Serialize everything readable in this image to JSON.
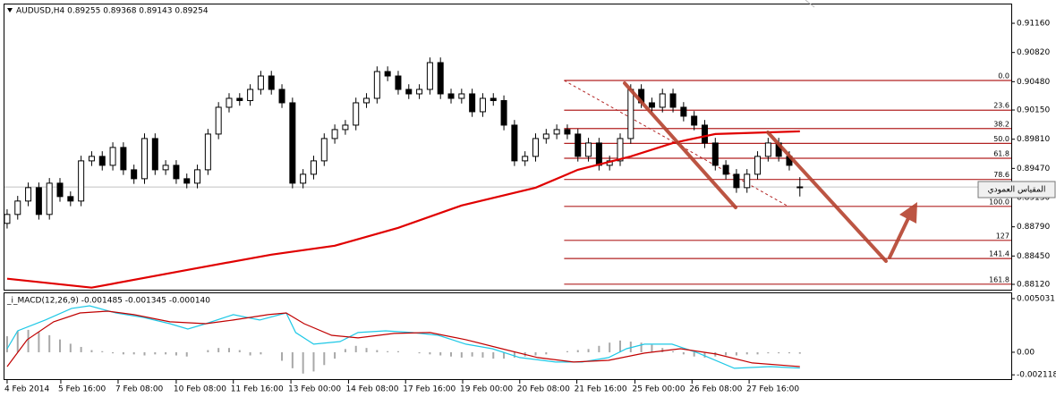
{
  "chart_data": [
    {
      "type": "candlestick",
      "title": "AUDUSD,H4  0.89255 0.89368 0.89143 0.89254",
      "up_color": "#ffffff",
      "down_color": "#000000",
      "edge_color": "#000000",
      "xlim": [
        -0.25,
        95
      ],
      "ylim": [
        0.88068,
        0.91379
      ],
      "yticks": [
        {
          "value": 0.9116,
          "label": "0.91160"
        },
        {
          "value": 0.9082,
          "label": "0.90820"
        },
        {
          "value": 0.9048,
          "label": "0.90480"
        },
        {
          "value": 0.9015,
          "label": "0.90150"
        },
        {
          "value": 0.8981,
          "label": "0.89810"
        },
        {
          "value": 0.8947,
          "label": "0.89470"
        },
        {
          "value": 0.8913,
          "label": "0.89130"
        },
        {
          "value": 0.8879,
          "label": "0.88790"
        },
        {
          "value": 0.8845,
          "label": "0.88450"
        },
        {
          "value": 0.8812,
          "label": "0.88120"
        }
      ],
      "xticks": [
        {
          "value": 0,
          "label": "4 Feb 2014"
        },
        {
          "value": 5.08,
          "label": "5 Feb 16:00"
        },
        {
          "value": 10.5,
          "label": "7 Feb 08:00"
        },
        {
          "value": 16,
          "label": "10 Feb 08:00"
        },
        {
          "value": 21.4,
          "label": "11 Feb 16:00"
        },
        {
          "value": 26.85,
          "label": "13 Feb 00:00"
        },
        {
          "value": 32.3,
          "label": "14 Feb 08:00"
        },
        {
          "value": 37.7,
          "label": "17 Feb 16:00"
        },
        {
          "value": 43.1,
          "label": "19 Feb 00:00"
        },
        {
          "value": 48.5,
          "label": "20 Feb 08:00"
        },
        {
          "value": 53.9,
          "label": "21 Feb 16:00"
        },
        {
          "value": 59.4,
          "label": "25 Feb 00:00"
        },
        {
          "value": 64.8,
          "label": "26 Feb 08:00"
        },
        {
          "value": 70.2,
          "label": "27 Feb 16:00"
        }
      ],
      "open": [
        0.8883,
        0.88934,
        0.8909,
        0.89246,
        0.88934,
        0.89298,
        0.89142,
        0.8909,
        0.89558,
        0.8961,
        0.89506,
        0.89714,
        0.89454,
        0.8935,
        0.89818,
        0.89454,
        0.89506,
        0.8935,
        0.89298,
        0.89454,
        0.8987,
        0.90182,
        0.90286,
        0.9026,
        0.9039,
        0.90546,
        0.9039,
        0.90234,
        0.89298,
        0.89402,
        0.89558,
        0.89818,
        0.89922,
        0.89974,
        0.90234,
        0.90286,
        0.90598,
        0.90546,
        0.9039,
        0.90338,
        0.9039,
        0.90702,
        0.90338,
        0.90286,
        0.90338,
        0.9013,
        0.90286,
        0.9026,
        0.89974,
        0.89558,
        0.8961,
        0.89818,
        0.8987,
        0.89922,
        0.8987,
        0.8961,
        0.89766,
        0.89506,
        0.89558,
        0.89818,
        0.9039,
        0.90234,
        0.90182,
        0.90338,
        0.90182,
        0.90078,
        0.89974,
        0.89766,
        0.89506,
        0.89402,
        0.89246,
        0.89402,
        0.8961,
        0.89766,
        0.8961,
        0.89255
      ],
      "high": [
        0.88994,
        0.8915,
        0.89306,
        0.89306,
        0.89358,
        0.89358,
        0.89202,
        0.89618,
        0.8967,
        0.8967,
        0.89774,
        0.89774,
        0.89514,
        0.89878,
        0.89878,
        0.89566,
        0.89566,
        0.8941,
        0.89514,
        0.8993,
        0.90242,
        0.90346,
        0.90346,
        0.9045,
        0.90606,
        0.90606,
        0.9045,
        0.90294,
        0.89462,
        0.89618,
        0.89878,
        0.89982,
        0.90034,
        0.90294,
        0.90346,
        0.90658,
        0.90658,
        0.90606,
        0.9045,
        0.9045,
        0.90762,
        0.90762,
        0.90398,
        0.90398,
        0.90398,
        0.90346,
        0.90346,
        0.9032,
        0.90034,
        0.8967,
        0.89878,
        0.8993,
        0.89982,
        0.89982,
        0.8993,
        0.89826,
        0.89826,
        0.89618,
        0.89878,
        0.9045,
        0.9045,
        0.90294,
        0.90398,
        0.90398,
        0.90242,
        0.90138,
        0.90034,
        0.89826,
        0.89566,
        0.89462,
        0.89462,
        0.8967,
        0.89826,
        0.89826,
        0.8967,
        0.89368
      ],
      "low": [
        0.8877,
        0.88874,
        0.8903,
        0.88874,
        0.88874,
        0.89082,
        0.8903,
        0.8903,
        0.89498,
        0.89446,
        0.89446,
        0.89394,
        0.8929,
        0.8929,
        0.89394,
        0.89394,
        0.8929,
        0.89238,
        0.89238,
        0.89394,
        0.8981,
        0.90122,
        0.902,
        0.902,
        0.9033,
        0.9033,
        0.90174,
        0.89238,
        0.89238,
        0.89342,
        0.89498,
        0.89758,
        0.89862,
        0.89914,
        0.90174,
        0.90226,
        0.90486,
        0.9033,
        0.90278,
        0.90278,
        0.9033,
        0.90278,
        0.90226,
        0.90226,
        0.9007,
        0.9007,
        0.902,
        0.89914,
        0.89498,
        0.89498,
        0.8955,
        0.89758,
        0.8981,
        0.8981,
        0.8955,
        0.8955,
        0.89446,
        0.89446,
        0.89498,
        0.89758,
        0.90174,
        0.90122,
        0.90122,
        0.90122,
        0.90018,
        0.89914,
        0.89706,
        0.89446,
        0.89342,
        0.89186,
        0.89186,
        0.89342,
        0.8955,
        0.8955,
        0.89446,
        0.89143
      ],
      "close": [
        0.88934,
        0.8909,
        0.89246,
        0.88934,
        0.89298,
        0.89142,
        0.8909,
        0.89558,
        0.8961,
        0.89506,
        0.89714,
        0.89454,
        0.8935,
        0.89818,
        0.89454,
        0.89506,
        0.8935,
        0.89298,
        0.89454,
        0.8987,
        0.90182,
        0.90286,
        0.9026,
        0.9039,
        0.90546,
        0.9039,
        0.90234,
        0.89298,
        0.89402,
        0.89558,
        0.89818,
        0.89922,
        0.89974,
        0.90234,
        0.90286,
        0.90598,
        0.90546,
        0.9039,
        0.90338,
        0.9039,
        0.90702,
        0.90338,
        0.90286,
        0.90338,
        0.9013,
        0.90286,
        0.9026,
        0.89974,
        0.89558,
        0.8961,
        0.89818,
        0.8987,
        0.89922,
        0.8987,
        0.8961,
        0.89766,
        0.89506,
        0.89558,
        0.89818,
        0.9039,
        0.90234,
        0.90182,
        0.90338,
        0.90182,
        0.90078,
        0.89974,
        0.89766,
        0.89506,
        0.89402,
        0.89246,
        0.89402,
        0.8961,
        0.89766,
        0.8961,
        0.89506,
        0.89254
      ],
      "overlays": [
        {
          "type": "line",
          "color": "#e00000",
          "x": [
            0,
            8,
            18,
            25,
            31,
            37,
            43,
            50,
            54,
            59,
            63,
            67,
            75
          ],
          "values": [
            0.88186,
            0.88082,
            0.8831,
            0.88466,
            0.8857,
            0.88778,
            0.89038,
            0.89246,
            0.89454,
            0.8961,
            0.89766,
            0.8987,
            0.89902
          ]
        }
      ],
      "fibonacci": {
        "color": "#b22222",
        "high": 0.90494,
        "low": 0.89028,
        "x": [
          52.7,
          73.9
        ],
        "levels": [
          {
            "value": 0,
            "label": "0.0"
          },
          23.6,
          38.2,
          {
            "value": 50,
            "label": "50.0"
          },
          61.8,
          78.6,
          {
            "value": 100,
            "label": "100.0"
          },
          127,
          141.4,
          161.8
        ]
      },
      "tooltip": "المقياس العمودي"
    },
    {
      "type": "macd",
      "title": "_i_MACD(12,26,9) -0.001485 -0.001345 -0.000140",
      "xlim": [
        -0.25,
        95
      ],
      "ylim": [
        -0.00252,
        0.00553
      ],
      "yticks": [
        {
          "value": 0.005031,
          "label": "0.005031"
        },
        {
          "value": 0,
          "label": "0.00"
        },
        {
          "value": -0.002118,
          "label": "-0.002118"
        }
      ],
      "histogram": {
        "color": "#a8a8a8",
        "values": [
          0.0015,
          0.002,
          0.0021,
          0.0019,
          0.0016,
          0.0012,
          0.0008,
          0.0005,
          0.0002,
          0.0001,
          -0.0001,
          -0.0002,
          -0.0002,
          -0.0003,
          -0.0002,
          -0.0002,
          -0.0003,
          -0.0004,
          0,
          0.0002,
          0.0004,
          0.0004,
          0.0002,
          -0.0003,
          -0.0002,
          0,
          -0.0008,
          -0.0015,
          -0.002,
          -0.0018,
          -0.0012,
          -0.0006,
          0.0003,
          0.0006,
          0.0004,
          0.0002,
          0.0001,
          0.0001,
          0,
          -0.0001,
          -0.0002,
          -0.0003,
          -0.0004,
          -0.0005,
          -0.0004,
          -0.0005,
          -0.0006,
          -0.0006,
          -0.0005,
          -0.0004,
          -0.0003,
          -0.0002,
          0,
          0.0001,
          0.0002,
          0.0003,
          0.0006,
          0.0009,
          0.0011,
          0.001,
          0.0009,
          0.0007,
          0.0004,
          0.0001,
          -0.0002,
          -0.0004,
          -0.0005,
          -0.0004,
          -0.0003,
          -0.0003,
          -0.0002,
          -0.0002,
          -0.0001,
          -0.0001,
          -0.0001,
          -0.00014
        ]
      },
      "series": [
        {
          "color": "#1ec8e6",
          "x": [
            0,
            1,
            3.6,
            6.1,
            7.8,
            10.3,
            12.9,
            15.4,
            17.1,
            18.8,
            21.4,
            23.9,
            26.4,
            27.3,
            29,
            31.5,
            33.2,
            35.8,
            38.3,
            40.8,
            43.4,
            45.9,
            48.5,
            51.9,
            54.4,
            56.9,
            58.6,
            60.3,
            62.9,
            65.4,
            68.8,
            72.2,
            75
          ],
          "values": [
            0.000335,
            0.002012,
            0.003019,
            0.004109,
            0.00436,
            0.003689,
            0.00327,
            0.002683,
            0.00218,
            0.002683,
            0.003522,
            0.003019,
            0.003689,
            0.001845,
            0.000755,
            0.001006,
            0.001845,
            0.002012,
            0.001845,
            0.001593,
            0.000755,
            0.000335,
            -0.000503,
            -0.000922,
            -0.000922,
            -0.000503,
            0.000335,
            0.000755,
            0.000755,
            -8.4e-05,
            -0.001509,
            -0.001342,
            -0.001485
          ]
        },
        {
          "color": "#c00000",
          "x": [
            0,
            1.9,
            4.4,
            6.9,
            9.5,
            12,
            15.4,
            18.8,
            21.4,
            24.7,
            26.4,
            28.1,
            30.7,
            33.2,
            36.6,
            40,
            43.4,
            46.8,
            50.2,
            53.6,
            56.9,
            60.3,
            63.7,
            67.1,
            70.5,
            75
          ],
          "values": [
            -0.001342,
            0.001174,
            0.002851,
            0.003689,
            0.003857,
            0.003522,
            0.002851,
            0.002683,
            0.003019,
            0.003522,
            0.003689,
            0.002683,
            0.001593,
            0.001342,
            0.001761,
            0.001845,
            0.001174,
            0.000335,
            -0.000503,
            -0.000922,
            -0.000755,
            -8.4e-05,
            0.000335,
            -0.000168,
            -0.001006,
            -0.001345
          ]
        }
      ]
    }
  ]
}
